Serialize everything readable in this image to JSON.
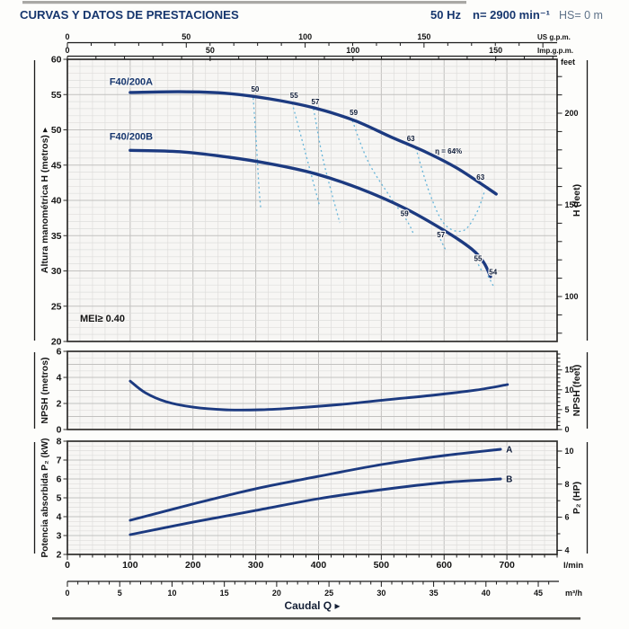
{
  "header": {
    "title": "CURVAS Y DATOS DE PRESTACIONES",
    "frequency": "50 Hz",
    "speed": "n= 2900 min⁻¹",
    "suction_head": "HS= 0 m"
  },
  "colors": {
    "curve_navy": "#1c3a80",
    "efficiency_cyan": "#66b5d9",
    "header_navy": "#16366e",
    "hs_text": "#5f7389",
    "label_dark": "#141414",
    "eff_label": "#0d1b38"
  },
  "top_axes": {
    "us": {
      "labels": [
        0,
        50,
        100,
        150
      ],
      "unit": "US g.p.m."
    },
    "imp": {
      "labels": [
        0,
        50,
        100,
        150
      ],
      "unit": "Imp.g.p.m."
    }
  },
  "bottom_axes": {
    "lmin": {
      "labels": [
        0,
        100,
        200,
        300,
        400,
        500,
        600,
        700
      ],
      "unit": "l/min"
    },
    "m3h": {
      "labels": [
        0,
        5,
        10,
        15,
        20,
        25,
        30,
        35,
        40,
        45
      ],
      "unit": "m³/h"
    },
    "caudal": "Caudal Q ▸"
  },
  "chart_data": [
    {
      "type": "line",
      "id": "head",
      "xlabel": "Caudal Q",
      "x_unit": "l/min",
      "xlim": [
        0,
        780
      ],
      "ylim": [
        20,
        60
      ],
      "ylabel_left": "Altura manométrica H (metros) ▸",
      "ylabel_right": "H (feet)",
      "right_unit": "feet",
      "left_ticks": [
        60,
        55,
        50,
        45,
        40,
        35,
        30,
        25,
        20
      ],
      "right_tick_labels": [
        200,
        150,
        100
      ],
      "mei_label": {
        "text": "MEI≥ 0.40",
        "q": 20,
        "h": 22.8
      },
      "series": [
        {
          "name": "F40/200A",
          "label_q": 67,
          "label_h": 56.4,
          "points": [
            [
              100,
              55.3
            ],
            [
              179,
              55.4
            ],
            [
              250,
              55.2
            ],
            [
              322,
              54.4
            ],
            [
              394,
              53.1
            ],
            [
              458,
              51.3
            ],
            [
              515,
              49.0
            ],
            [
              572,
              46.8
            ],
            [
              622,
              44.5
            ],
            [
              683,
              40.9
            ]
          ]
        },
        {
          "name": "F40/200B",
          "label_q": 67,
          "label_h": 48.6,
          "points": [
            [
              100,
              47.1
            ],
            [
              179,
              46.9
            ],
            [
              250,
              46.2
            ],
            [
              322,
              45.2
            ],
            [
              394,
              43.8
            ],
            [
              465,
              41.7
            ],
            [
              537,
              38.9
            ],
            [
              601,
              35.7
            ],
            [
              644,
              33.1
            ],
            [
              663,
              31.2
            ],
            [
              674,
              29.2
            ]
          ]
        }
      ],
      "efficiency": {
        "labels": [
          {
            "text": "50",
            "q": 299,
            "h": 55.4
          },
          {
            "text": "55",
            "q": 361,
            "h": 54.5
          },
          {
            "text": "57",
            "q": 395,
            "h": 53.6
          },
          {
            "text": "59",
            "q": 456,
            "h": 52.1
          },
          {
            "text": "63",
            "q": 547,
            "h": 48.4
          },
          {
            "text": "η = 64%",
            "q": 607,
            "h": 46.6
          },
          {
            "text": "63",
            "q": 658,
            "h": 42.9
          },
          {
            "text": "59",
            "q": 537,
            "h": 37.8
          },
          {
            "text": "57",
            "q": 595,
            "h": 34.8
          },
          {
            "text": "55",
            "q": 654,
            "h": 31.4
          },
          {
            "text": "54",
            "q": 678,
            "h": 29.5
          }
        ],
        "contours": [
          [
            [
              296,
              54.5
            ],
            [
              301,
              48.0
            ],
            [
              305,
              42.0
            ],
            [
              308,
              38.8
            ]
          ],
          [
            [
              358,
              53.8
            ],
            [
              379,
              46.8
            ],
            [
              402,
              39.1
            ]
          ],
          [
            [
              392,
              53.0
            ],
            [
              408,
              45.5
            ],
            [
              434,
              36.8
            ]
          ],
          [
            [
              454,
              51.3
            ],
            [
              479,
              45.5
            ],
            [
              515,
              40.4
            ],
            [
              541,
              37.1
            ],
            [
              551,
              35.3
            ]
          ],
          [
            [
              555,
              47.4
            ],
            [
              577,
              41.0
            ],
            [
              601,
              36.6
            ],
            [
              630,
              35.7
            ],
            [
              651,
              38.1
            ],
            [
              665,
              41.4
            ]
          ],
          [
            [
              594,
              34.5
            ],
            [
              604,
              32.7
            ]
          ],
          [
            [
              651,
              31.5
            ],
            [
              661,
              29.8
            ]
          ],
          [
            [
              670,
              29.3
            ],
            [
              680,
              27.6
            ]
          ]
        ]
      }
    },
    {
      "type": "line",
      "id": "npsh",
      "xlim": [
        0,
        780
      ],
      "ylim": [
        0,
        6
      ],
      "ylabel_left": "NPSH (metros)",
      "ylabel_right": "NPSH (feet)",
      "left_ticks": [
        6,
        4,
        2,
        0
      ],
      "right_tick_labels": [
        15,
        10,
        5,
        0
      ],
      "series": [
        {
          "name": "NPSH",
          "points": [
            [
              100,
              3.72
            ],
            [
              124,
              2.83
            ],
            [
              157,
              2.14
            ],
            [
              200,
              1.72
            ],
            [
              250,
              1.52
            ],
            [
              308,
              1.52
            ],
            [
              365,
              1.66
            ],
            [
              437,
              1.93
            ],
            [
              508,
              2.28
            ],
            [
              580,
              2.62
            ],
            [
              651,
              3.03
            ],
            [
              701,
              3.45
            ]
          ]
        }
      ]
    },
    {
      "type": "line",
      "id": "power",
      "xlim": [
        0,
        780
      ],
      "ylim": [
        2,
        8
      ],
      "ylabel_left": "Potencia absorbida P₂ (kW)",
      "ylabel_right": "P₂ (HP)",
      "left_ticks": [
        8,
        7,
        6,
        5,
        4,
        3,
        2
      ],
      "right_tick_labels": [
        10,
        8,
        6,
        4
      ],
      "series": [
        {
          "name": "A",
          "end_label": "A",
          "points": [
            [
              100,
              3.81
            ],
            [
              200,
              4.67
            ],
            [
              300,
              5.48
            ],
            [
              400,
              6.14
            ],
            [
              500,
              6.76
            ],
            [
              600,
              7.24
            ],
            [
              690,
              7.57
            ]
          ]
        },
        {
          "name": "B",
          "end_label": "B",
          "points": [
            [
              100,
              3.05
            ],
            [
              200,
              3.71
            ],
            [
              300,
              4.33
            ],
            [
              400,
              4.95
            ],
            [
              500,
              5.43
            ],
            [
              600,
              5.81
            ],
            [
              690,
              6.0
            ]
          ]
        }
      ]
    }
  ]
}
